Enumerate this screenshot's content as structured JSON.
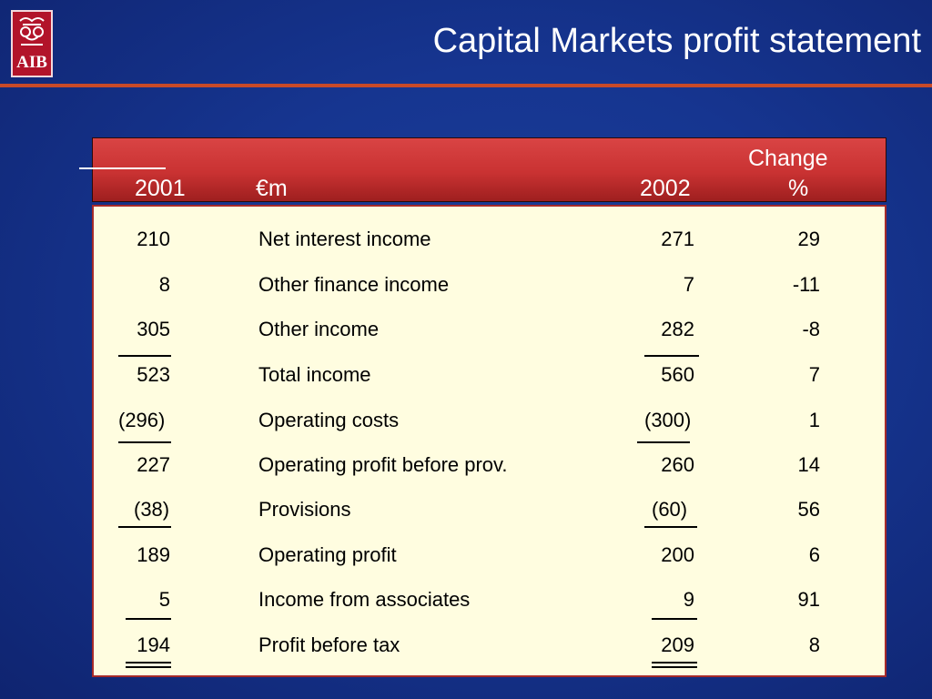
{
  "header": {
    "logo_text": "AIB",
    "title": "Capital Markets profit statement"
  },
  "table": {
    "col_2001": "2001",
    "col_label": "€m",
    "col_2002": "2002",
    "col_change_line1": "Change",
    "col_change_line2": "%",
    "rows": [
      {
        "y2001": "210",
        "label": "Net interest income",
        "y2002": "271",
        "change": "29"
      },
      {
        "y2001": "8",
        "label": "Other finance income",
        "y2002": "7",
        "change": "-11"
      },
      {
        "y2001": "305",
        "label": "Other income",
        "y2002": "282",
        "change": "-8"
      },
      {
        "y2001": "523",
        "label": "Total income",
        "y2002": "560",
        "change": "7"
      },
      {
        "y2001": "(296)",
        "label": "Operating costs",
        "y2002": "(300)",
        "change": "1"
      },
      {
        "y2001": "227",
        "label": "Operating profit before prov.",
        "y2002": "260",
        "change": "14"
      },
      {
        "y2001": "(38)",
        "label": "Provisions",
        "y2002": "(60)",
        "change": "56"
      },
      {
        "y2001": "189",
        "label": "Operating profit",
        "y2002": "200",
        "change": "6"
      },
      {
        "y2001": "5",
        "label": "Income from associates",
        "y2002": "9",
        "change": "91"
      },
      {
        "y2001": "194",
        "label": "Profit before tax",
        "y2002": "209",
        "change": "8"
      }
    ]
  },
  "colors": {
    "background": "#163590",
    "header_band": "#c93232",
    "table_panel": "#fffde0",
    "accent_rule": "#c84a28",
    "logo": "#b2142a"
  }
}
